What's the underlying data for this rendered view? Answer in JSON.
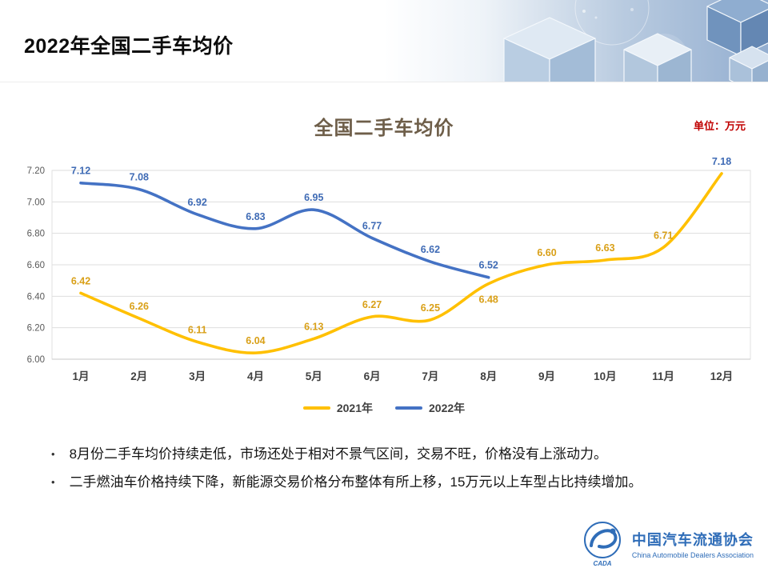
{
  "header": {
    "title": "2022年全国二手车均价"
  },
  "chart": {
    "title": "全国二手车均价",
    "unit_label": "单位：万元"
  },
  "chart_data": {
    "type": "line",
    "title": "全国二手车均价",
    "unit": "万元",
    "categories": [
      "1月",
      "2月",
      "3月",
      "4月",
      "5月",
      "6月",
      "7月",
      "8月",
      "9月",
      "10月",
      "11月",
      "12月"
    ],
    "series": [
      {
        "name": "2021年",
        "color": "#FFC000",
        "label_color": "#D9A018",
        "values": [
          6.42,
          6.26,
          6.11,
          6.04,
          6.13,
          6.27,
          6.25,
          6.48,
          6.6,
          6.63,
          6.71,
          7.18
        ],
        "labels_below": [
          7
        ],
        "label_overrides": {
          "11": "#3F6BB5"
        }
      },
      {
        "name": "2022年",
        "color": "#4472C4",
        "label_color": "#3F6BB5",
        "values": [
          7.12,
          7.08,
          6.92,
          6.83,
          6.95,
          6.77,
          6.62,
          6.52
        ]
      }
    ],
    "ylim": [
      6.0,
      7.2
    ],
    "yticks": [
      6.0,
      6.2,
      6.4,
      6.6,
      6.8,
      7.0,
      7.2
    ],
    "grid": true,
    "legend_position": "bottom"
  },
  "notes": [
    "8月份二手车均价持续走低，市场还处于相对不景气区间，交易不旺，价格没有上涨动力。",
    "二手燃油车价格持续下降，新能源交易价格分布整体有所上移，15万元以上车型占比持续增加。"
  ],
  "footer": {
    "org_cn": "中国汽车流通协会",
    "org_en": "China Automobile Dealers Association",
    "logo_text": "CADA"
  }
}
